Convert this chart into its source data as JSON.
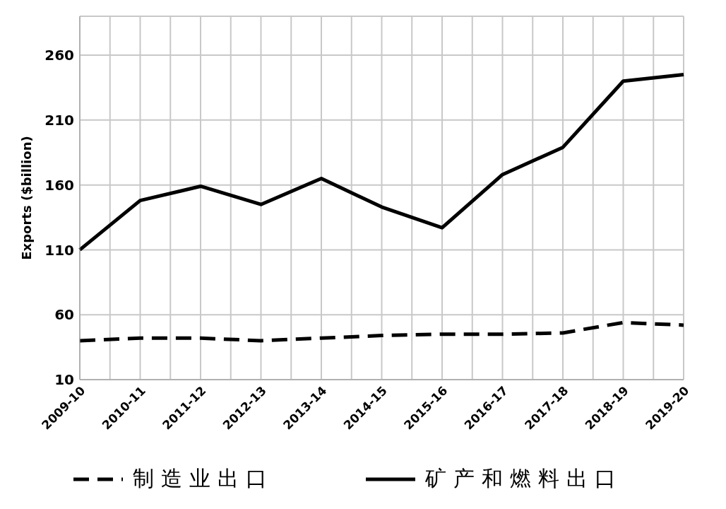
{
  "chart_data": {
    "type": "line",
    "ylabel": "Exports ($billion)",
    "categories": [
      "2009-10",
      "2010-11",
      "2011-12",
      "2012-13",
      "2013-14",
      "2014-15",
      "2015-16",
      "2016-17",
      "2017-18",
      "2018-19",
      "2019-20"
    ],
    "series": [
      {
        "name": "制造业出口",
        "color": "#000000",
        "line_style": "dashed",
        "values": [
          40,
          42,
          42,
          40,
          42,
          44,
          45,
          45,
          46,
          54,
          52
        ]
      },
      {
        "name": "矿产和燃料出口",
        "color": "#000000",
        "line_style": "solid",
        "values": [
          110,
          148,
          159,
          145,
          165,
          143,
          127,
          168,
          189,
          240,
          245
        ]
      }
    ],
    "ylim": [
      10,
      290
    ],
    "yticks": [
      10,
      60,
      110,
      160,
      210,
      260
    ],
    "grid": true,
    "legend": "bottom",
    "marker": "none"
  }
}
